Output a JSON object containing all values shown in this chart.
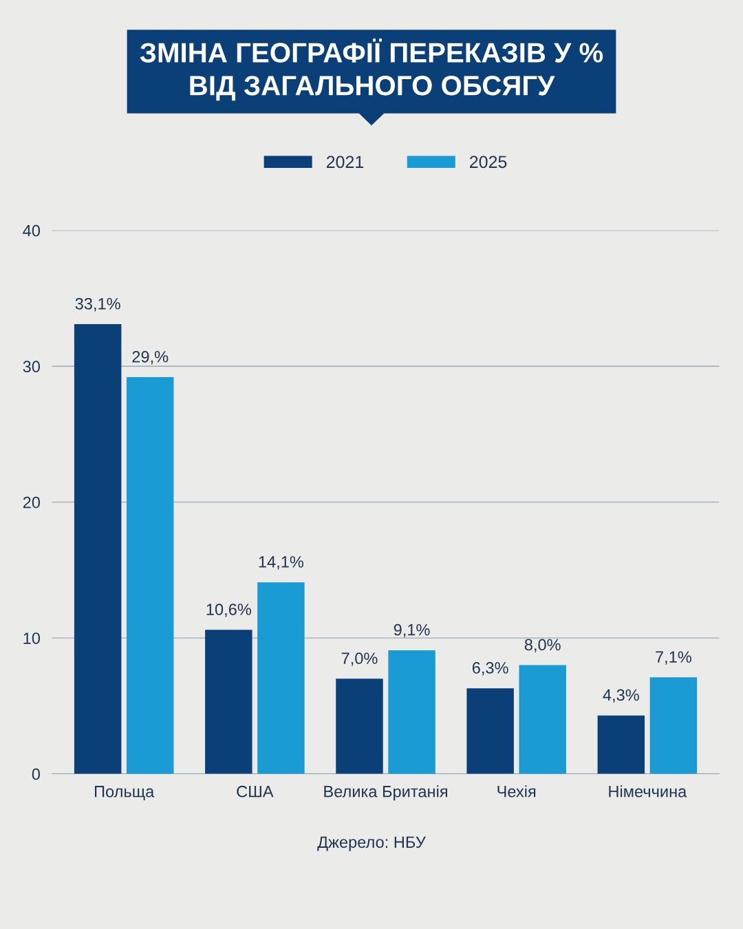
{
  "chart_data": {
    "type": "bar",
    "title": "ЗМІНА ГЕОГРАФІЇ ПЕРЕКАЗІВ У %\nВІД ЗАГАЛЬНОГО ОБСЯГУ",
    "categories": [
      "Польща",
      "США",
      "Велика Британія",
      "Чехія",
      "Німеччина"
    ],
    "series": [
      {
        "name": "2021",
        "color": "#0b3f78",
        "values": [
          33.1,
          10.6,
          7.0,
          6.3,
          4.3
        ],
        "value_labels": [
          "33,1%",
          "10,6%",
          "7,0%",
          "6,3%",
          "4,3%"
        ]
      },
      {
        "name": "2025",
        "color": "#1a9bd4",
        "values": [
          29.2,
          14.1,
          9.1,
          8.0,
          7.1
        ],
        "value_labels": [
          "29,%",
          "14,1%",
          "9,1%",
          "8,0%",
          "7,1%"
        ]
      }
    ],
    "ylim": [
      0,
      40
    ],
    "yticks": [
      0,
      10,
      20,
      30,
      40
    ],
    "grid": "y",
    "legend": "top",
    "annotations": [
      "Джерело: НБУ"
    ]
  }
}
